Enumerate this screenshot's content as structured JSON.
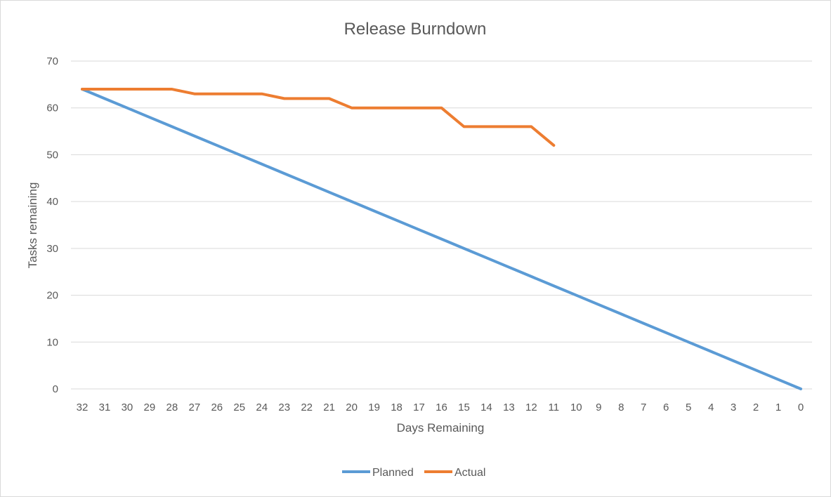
{
  "chart_data": {
    "type": "line",
    "title": "Release Burndown",
    "xlabel": "Days Remaining",
    "ylabel": "Tasks remaining",
    "ylim": [
      0,
      70
    ],
    "yticks": [
      0,
      10,
      20,
      30,
      40,
      50,
      60,
      70
    ],
    "grid": true,
    "legend_position": "bottom",
    "categories": [
      "32",
      "31",
      "30",
      "29",
      "28",
      "27",
      "26",
      "25",
      "24",
      "23",
      "22",
      "21",
      "20",
      "19",
      "18",
      "17",
      "16",
      "15",
      "14",
      "13",
      "12",
      "11",
      "10",
      "9",
      "8",
      "7",
      "6",
      "5",
      "4",
      "3",
      "2",
      "1",
      "0"
    ],
    "series": [
      {
        "name": "Planned",
        "color": "#5b9bd5",
        "values": [
          64,
          62,
          60,
          58,
          56,
          54,
          52,
          50,
          48,
          46,
          44,
          42,
          40,
          38,
          36,
          34,
          32,
          30,
          28,
          26,
          24,
          22,
          20,
          18,
          16,
          14,
          12,
          10,
          8,
          6,
          4,
          2,
          0
        ]
      },
      {
        "name": "Actual",
        "color": "#ed7d31",
        "values": [
          64,
          64,
          64,
          64,
          64,
          63,
          63,
          63,
          63,
          62,
          62,
          62,
          60,
          60,
          60,
          60,
          60,
          56,
          56,
          56,
          56,
          52,
          null,
          null,
          null,
          null,
          null,
          null,
          null,
          null,
          null,
          null,
          null
        ]
      }
    ]
  }
}
